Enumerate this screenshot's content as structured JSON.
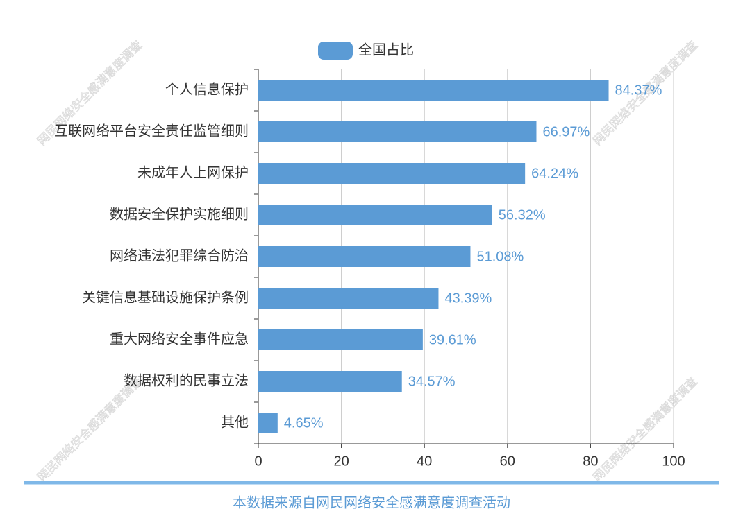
{
  "chart_data": {
    "type": "bar",
    "orientation": "horizontal",
    "categories": [
      "个人信息保护",
      "互联网络平台安全责任监管细则",
      "未成年人上网保护",
      "数据安全保护实施细则",
      "网络违法犯罪综合防治",
      "关键信息基础设施保护条例",
      "重大网络安全事件应急",
      "数据权利的民事立法",
      "其他"
    ],
    "series": [
      {
        "name": "全国占比",
        "color": "#5b9bd5",
        "values": [
          84.37,
          66.97,
          64.24,
          56.32,
          51.08,
          43.39,
          39.61,
          34.57,
          4.65
        ],
        "value_labels": [
          "84.37%",
          "66.97%",
          "64.24%",
          "56.32%",
          "51.08%",
          "43.39%",
          "39.61%",
          "34.57%",
          "4.65%"
        ]
      }
    ],
    "xlim": [
      0,
      100
    ],
    "xticks": [
      0,
      20,
      40,
      60,
      80,
      100
    ],
    "grid": true,
    "legend": "top"
  },
  "watermark": "网民网络安全感满意度调查",
  "source": "本数据来源自网民网络安全感满意度调查活动"
}
